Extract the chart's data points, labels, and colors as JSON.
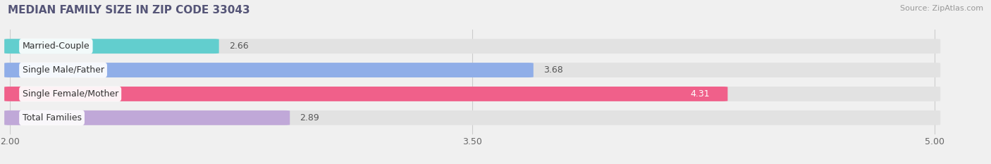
{
  "title": "MEDIAN FAMILY SIZE IN ZIP CODE 33043",
  "source": "Source: ZipAtlas.com",
  "categories": [
    "Married-Couple",
    "Single Male/Father",
    "Single Female/Mother",
    "Total Families"
  ],
  "values": [
    2.66,
    3.68,
    4.31,
    2.89
  ],
  "bar_colors": [
    "#62cece",
    "#90aee8",
    "#f0608a",
    "#c0a8d8"
  ],
  "label_colors": [
    "#444444",
    "#444444",
    "#ffffff",
    "#444444"
  ],
  "value_inside": [
    false,
    false,
    true,
    false
  ],
  "xmin": 2.0,
  "xmax": 5.0,
  "xticks": [
    2.0,
    3.5,
    5.0
  ],
  "background_color": "#f0f0f0",
  "bar_background_color": "#e2e2e2",
  "title_color": "#555577",
  "source_color": "#999999",
  "title_fontsize": 11,
  "value_fontsize": 9,
  "label_fontsize": 9,
  "tick_fontsize": 9,
  "bar_height": 0.58,
  "figsize": [
    14.06,
    2.33
  ],
  "dpi": 100
}
